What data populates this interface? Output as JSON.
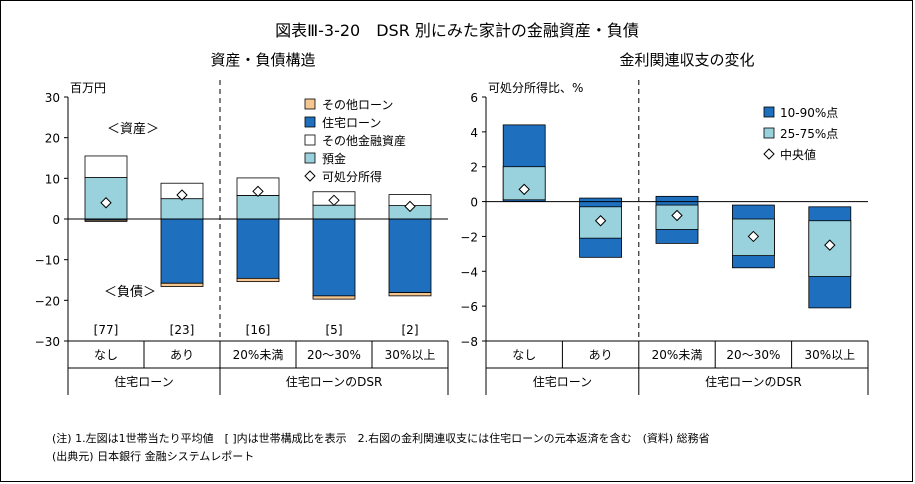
{
  "figure": {
    "title": "図表Ⅲ-3-20　DSR 別にみた家計の金融資産・負債",
    "left_title": "資産・負債構造",
    "right_title": "金利関連収支の変化",
    "note1": "(注) 1.左図は1世帯当たり平均値　[ ]内は世帯構成比を表示　2.右図の金利関連収支には住宅ローンの元本返済を含む　(資料) 総務省",
    "note2": "(出典元) 日本銀行 金融システムレポート"
  },
  "chart_data": [
    {
      "type": "bar",
      "stacked": true,
      "title": "資産・負債構造",
      "ylabel": "百万円",
      "ylim": [
        -30,
        30
      ],
      "yticks": [
        30,
        20,
        10,
        0,
        -10,
        -20,
        -30
      ],
      "categories": [
        "なし",
        "あり",
        "20%未満",
        "20～30%",
        "30%以上"
      ],
      "groups": [
        {
          "label": "住宅ローン",
          "span": [
            0,
            1
          ]
        },
        {
          "label": "住宅ローンのDSR",
          "span": [
            2,
            4
          ]
        }
      ],
      "bracket_labels": [
        "[77]",
        "[23]",
        "[16]",
        "[5]",
        "[2]"
      ],
      "annotations": {
        "assets": "＜資産＞",
        "liabilities": "＜負債＞"
      },
      "legend": [
        "その他ローン",
        "住宅ローン",
        "その他金融資産",
        "預金",
        "可処分所得"
      ],
      "colors": {
        "other_loan": "#f5c68f",
        "housing_loan": "#1f6fbf",
        "other_assets": "#ffffff",
        "deposits": "#99d1dd",
        "income": "#ffffff"
      },
      "series": [
        {
          "name": "預金",
          "values": [
            10.2,
            5.0,
            5.8,
            3.4,
            3.3
          ]
        },
        {
          "name": "その他金融資産",
          "values": [
            5.3,
            3.8,
            4.3,
            3.3,
            2.7
          ]
        },
        {
          "name": "住宅ローン",
          "values": [
            -0.3,
            -15.8,
            -14.6,
            -18.9,
            -18.1
          ]
        },
        {
          "name": "その他ローン",
          "values": [
            -0.3,
            -0.8,
            -0.8,
            -0.8,
            -0.8
          ]
        },
        {
          "name": "可処分所得",
          "values": [
            4.0,
            5.9,
            6.8,
            4.6,
            3.1
          ]
        }
      ]
    },
    {
      "type": "range",
      "title": "金利関連収支の変化",
      "ylabel": "可処分所得比、%",
      "ylim": [
        -8,
        6
      ],
      "yticks": [
        6,
        4,
        2,
        0,
        -2,
        -4,
        -6,
        -8
      ],
      "categories": [
        "なし",
        "あり",
        "20%未満",
        "20～30%",
        "30%以上"
      ],
      "groups": [
        {
          "label": "住宅ローン",
          "span": [
            0,
            1
          ]
        },
        {
          "label": "住宅ローンのDSR",
          "span": [
            2,
            4
          ]
        }
      ],
      "legend": [
        "10-90%点",
        "25-75%点",
        "中央値"
      ],
      "colors": {
        "p10_90": "#1f6fbf",
        "p25_75": "#99d1dd",
        "median": "#ffffff"
      },
      "series": [
        {
          "name": "10%点",
          "values": [
            0.0,
            -3.2,
            -2.4,
            -3.8,
            -6.1
          ]
        },
        {
          "name": "25%点",
          "values": [
            0.1,
            -2.1,
            -1.6,
            -3.1,
            -4.3
          ]
        },
        {
          "name": "中央値",
          "values": [
            0.7,
            -1.1,
            -0.8,
            -2.0,
            -2.5
          ]
        },
        {
          "name": "75%点",
          "values": [
            2.0,
            -0.3,
            -0.2,
            -1.0,
            -1.1
          ]
        },
        {
          "name": "90%点",
          "values": [
            4.4,
            0.2,
            0.3,
            -0.2,
            -0.3
          ]
        }
      ]
    }
  ]
}
